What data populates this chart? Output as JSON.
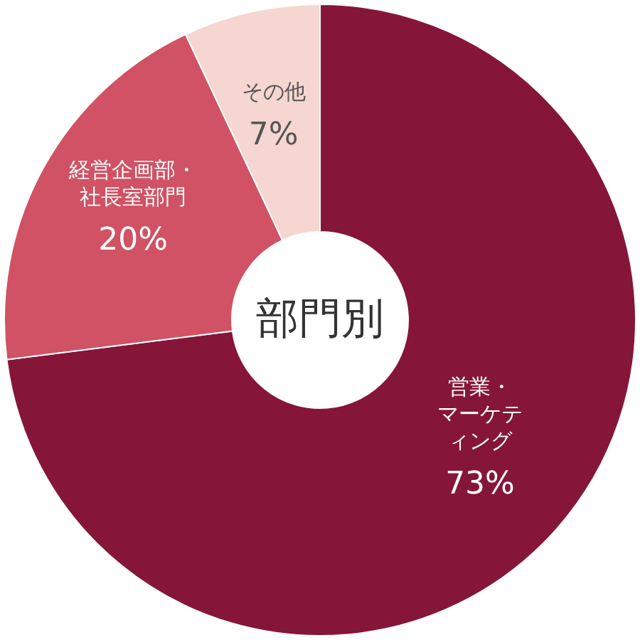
{
  "chart_data": {
    "type": "donut",
    "title": "部門別",
    "categories": [
      "営業・マーケティング",
      "経営企画部・社長室部門",
      "その他"
    ],
    "values": [
      73,
      20,
      7
    ],
    "value_labels": [
      "73%",
      "20%",
      "7%"
    ],
    "colors": [
      "#851638",
      "#d05264",
      "#f6d6d0"
    ]
  }
}
